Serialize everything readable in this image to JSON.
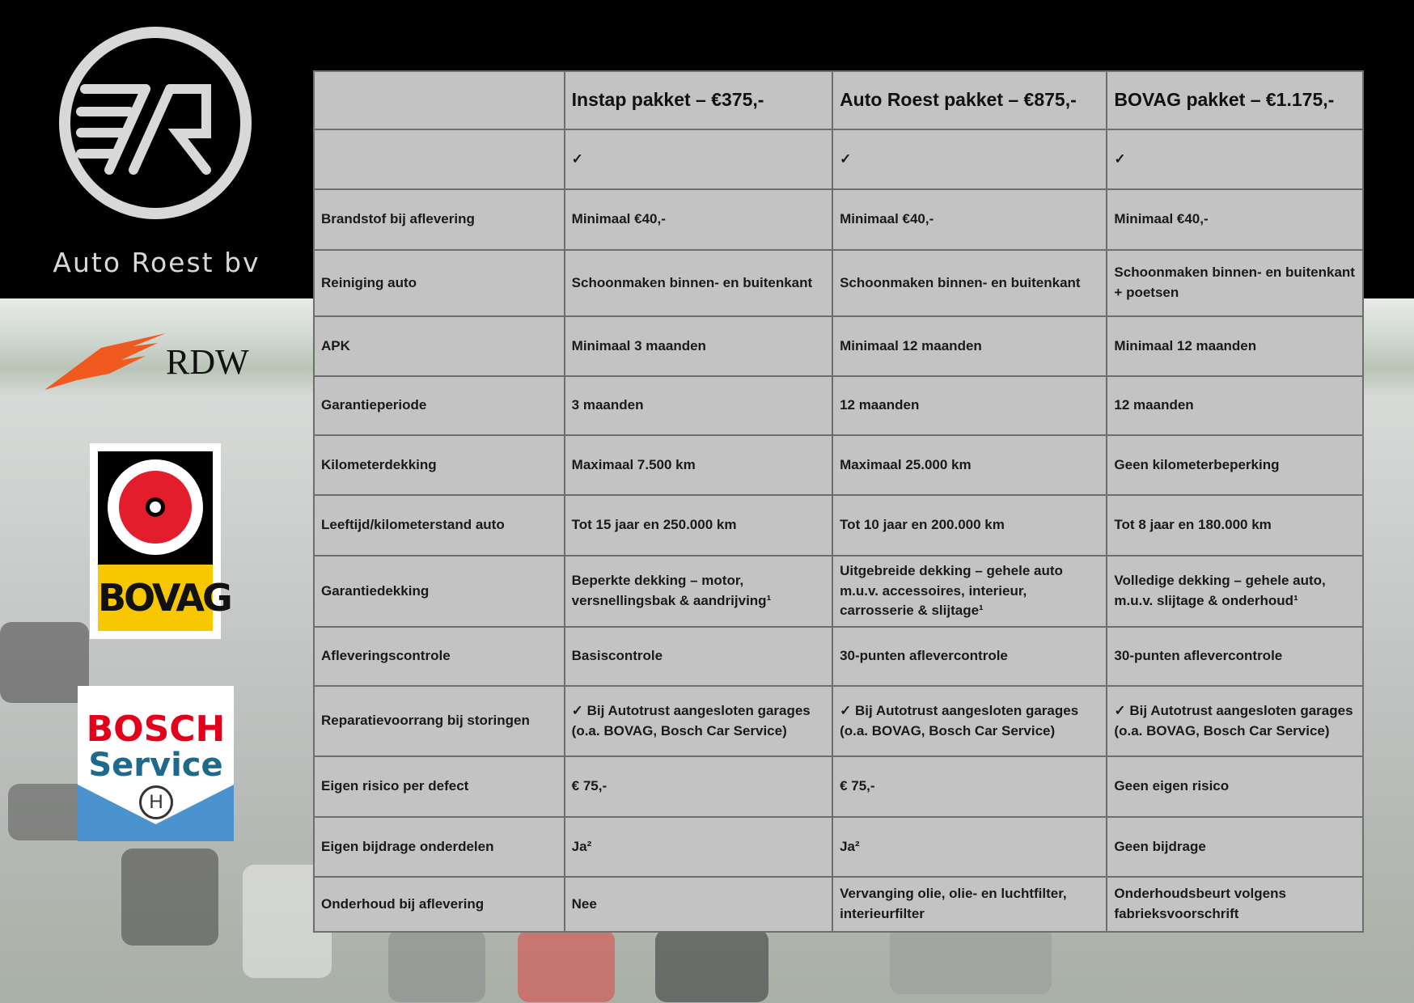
{
  "brand": {
    "name": "Auto Roest bv",
    "logo_letters": "7R"
  },
  "logos": {
    "rdw": "RDW",
    "bovag": "BOVAG",
    "bosch_1": "BOSCH",
    "bosch_2": "Service",
    "colors": {
      "rdw": "#f05a1e",
      "bovag_yellow": "#f7c800",
      "bovag_red": "#e31d2b",
      "bosch_red": "#e2001a",
      "bosch_blue": "#4a93cf"
    }
  },
  "table": {
    "headers": [
      "",
      "Instap pakket – €375,-",
      "Auto Roest pakket – €875,-",
      "BOVAG pakket – €1.175,-"
    ],
    "rows": [
      [
        "",
        "✓",
        "✓",
        "✓"
      ],
      [
        "Brandstof bij aflevering",
        "Minimaal €40,-",
        "Minimaal €40,-",
        "Minimaal €40,-"
      ],
      [
        "Reiniging auto",
        "Schoonmaken binnen- en buitenkant",
        "Schoonmaken binnen- en buitenkant",
        "Schoonmaken binnen- en buitenkant + poetsen"
      ],
      [
        "APK",
        "Minimaal 3 maanden",
        "Minimaal 12 maanden",
        "Minimaal 12 maanden"
      ],
      [
        "Garantieperiode",
        "3 maanden",
        "12 maanden",
        "12 maanden"
      ],
      [
        "Kilometerdekking",
        "Maximaal 7.500 km",
        "Maximaal 25.000 km",
        "Geen kilometerbeperking"
      ],
      [
        "Leeftijd/kilometerstand auto",
        "Tot 15 jaar en 250.000 km",
        "Tot 10 jaar en 200.000 km",
        "Tot 8 jaar en 180.000 km"
      ],
      [
        "Garantiedekking",
        "Beperkte dekking – motor, versnellingsbak & aandrijving¹",
        "Uitgebreide dekking – gehele auto m.u.v. accessoires, interieur, carrosserie & slijtage¹",
        "Volledige dekking – gehele auto, m.u.v. slijtage & onderhoud¹"
      ],
      [
        "Afleveringscontrole",
        "Basiscontrole",
        "30-punten aflevercontrole",
        "30-punten aflevercontrole"
      ],
      [
        "Reparatievoorrang bij storingen",
        "✓ Bij Autotrust aangesloten garages (o.a. BOVAG, Bosch Car Service)",
        "✓ Bij Autotrust aangesloten garages (o.a. BOVAG, Bosch Car Service)",
        "✓ Bij Autotrust aangesloten garages (o.a. BOVAG, Bosch Car Service)"
      ],
      [
        "Eigen risico per defect",
        "€ 75,-",
        "€ 75,-",
        "Geen eigen risico"
      ],
      [
        "Eigen bijdrage onderdelen",
        "Ja²",
        "Ja²",
        "Geen bijdrage"
      ],
      [
        "Onderhoud bij aflevering",
        "Nee",
        "Vervanging olie, olie- en luchtfilter, interieurfilter",
        "Onderhoudsbeurt volgens fabrieksvoorschrift"
      ]
    ]
  }
}
